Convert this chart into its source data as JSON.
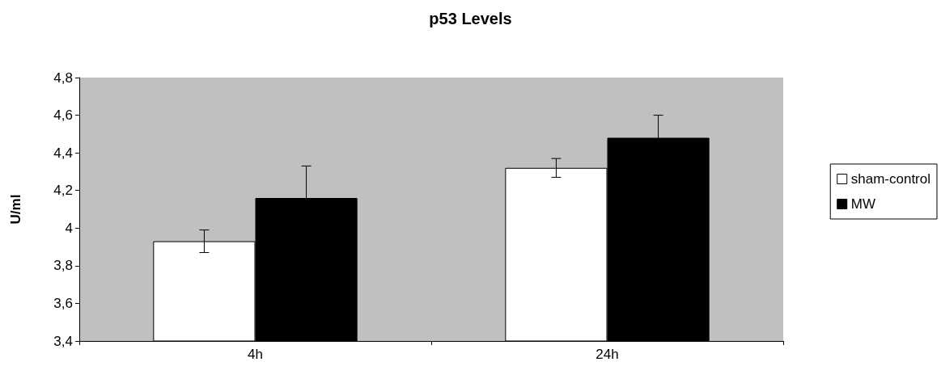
{
  "chart_data": {
    "type": "bar",
    "title": "p53 Levels",
    "ylabel": "U/ml",
    "categories": [
      "4h",
      "24h"
    ],
    "series": [
      {
        "name": "sham-control",
        "color": "#ffffff",
        "values": [
          3.93,
          4.32
        ],
        "errors": [
          0.06,
          0.05
        ]
      },
      {
        "name": "MW",
        "color": "#000000",
        "values": [
          4.16,
          4.48
        ],
        "errors": [
          0.17,
          0.12
        ]
      }
    ],
    "ylim": [
      3.4,
      4.8
    ],
    "yticks": [
      {
        "value": 3.4,
        "label": "3,4"
      },
      {
        "value": 3.6,
        "label": "3,6"
      },
      {
        "value": 3.8,
        "label": "3,8"
      },
      {
        "value": 4,
        "label": "4"
      },
      {
        "value": 4.2,
        "label": "4,2"
      },
      {
        "value": 4.4,
        "label": "4,4"
      },
      {
        "value": 4.6,
        "label": "4,6"
      },
      {
        "value": 4.8,
        "label": "4,8"
      }
    ],
    "grid": false,
    "legend": "right"
  }
}
